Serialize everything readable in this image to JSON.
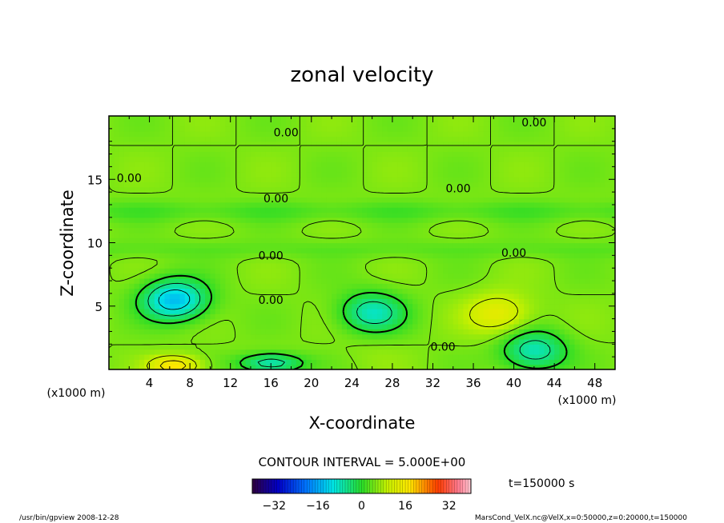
{
  "chart_data": {
    "type": "heatmap",
    "title": "zonal velocity",
    "xlabel": "X-coordinate",
    "ylabel": "Z-coordinate",
    "x_unit": "(x1000 m)",
    "y_unit": "(x1000 m)",
    "xlim": [
      0,
      50
    ],
    "ylim": [
      0,
      20
    ],
    "x_ticks": [
      4,
      8,
      12,
      16,
      20,
      24,
      28,
      32,
      36,
      40,
      44,
      48
    ],
    "y_ticks": [
      5,
      10,
      15
    ],
    "contour_interval_text": "CONTOUR INTERVAL = 5.000E+00",
    "time_text": "t=150000 s",
    "colorbar": {
      "min": -40,
      "max": 40,
      "ticks": [
        -32,
        -16,
        0,
        16,
        32
      ]
    },
    "contour_labels": [
      {
        "text": "0.00",
        "x": 17.5,
        "z": 18.7
      },
      {
        "text": "0.00",
        "x": 42.0,
        "z": 19.5
      },
      {
        "text": "0.00",
        "x": 2.0,
        "z": 15.1
      },
      {
        "text": "0.00",
        "x": 16.5,
        "z": 13.5
      },
      {
        "text": "0.00",
        "x": 34.5,
        "z": 14.3
      },
      {
        "text": "0.00",
        "x": 16.0,
        "z": 9.0
      },
      {
        "text": "0.00",
        "x": 40.0,
        "z": 9.2
      },
      {
        "text": "0.00",
        "x": 16.0,
        "z": 5.5
      },
      {
        "text": "0.00",
        "x": 33.0,
        "z": 1.8
      }
    ],
    "features": [
      {
        "kind": "min",
        "x": 6.5,
        "z": 5.5,
        "value": -14
      },
      {
        "kind": "max",
        "x": 38.5,
        "z": 4.4,
        "value": 14
      },
      {
        "kind": "max",
        "x": 6.5,
        "z": 0.3,
        "value": 18
      },
      {
        "kind": "min",
        "x": 16.0,
        "z": 0.5,
        "value": -8
      },
      {
        "kind": "min",
        "x": 26.0,
        "z": 4.5,
        "value": -8
      },
      {
        "kind": "min",
        "x": 42.0,
        "z": 1.5,
        "value": -8
      },
      {
        "kind": "max",
        "x": 26.0,
        "z": 1.5,
        "value": 6
      }
    ]
  },
  "footer": {
    "left": "/usr/bin/gpview   2008-12-28",
    "right": "MarsCond_VelX.nc@VelX,x=0:50000,z=0:20000,t=150000"
  }
}
